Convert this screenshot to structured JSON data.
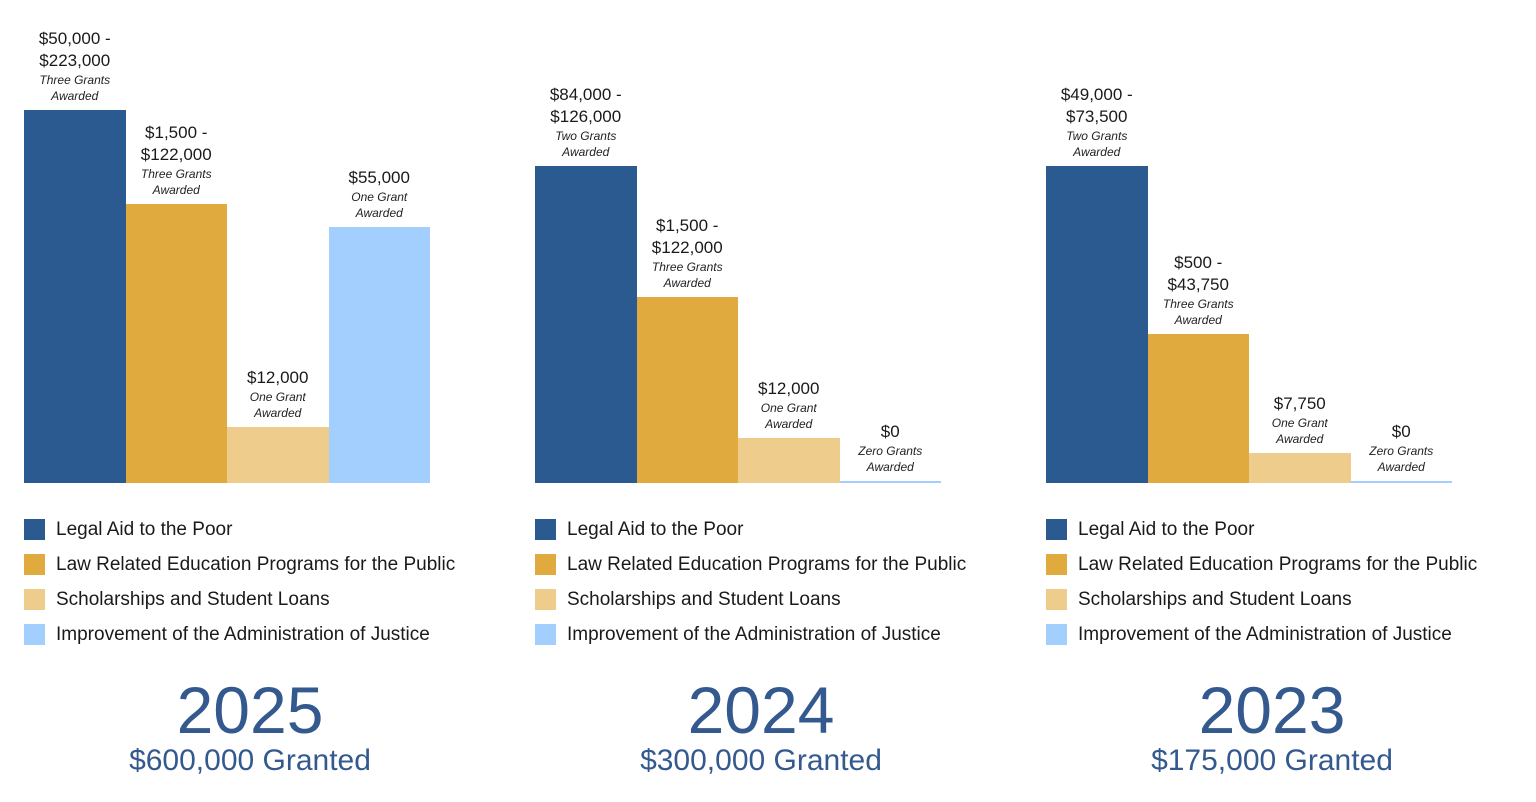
{
  "chart_data": [
    {
      "type": "bar",
      "title": "2025",
      "subtitle": "$600,000 Granted",
      "categories": [
        "Legal Aid to the Poor",
        "Law Related Education Programs for the Public",
        "Scholarships and Student Loans",
        "Improvement of the Administration of Justice"
      ],
      "bars": [
        {
          "amount": "$50,000 - $223,000",
          "note": "Three Grants Awarded"
        },
        {
          "amount": "$1,500 - $122,000",
          "note": "Three Grants Awarded"
        },
        {
          "amount": "$12,000",
          "note": "One Grant Awarded"
        },
        {
          "amount": "$55,000",
          "note": "One Grant Awarded"
        }
      ],
      "legend_placement": "bottom",
      "grid": false
    },
    {
      "type": "bar",
      "title": "2024",
      "subtitle": "$300,000 Granted",
      "categories": [
        "Legal Aid to the Poor",
        "Law Related Education Programs for the Public",
        "Scholarships and Student Loans",
        "Improvement of the Administration of Justice"
      ],
      "bars": [
        {
          "amount": "$84,000 - $126,000",
          "note": "Two Grants Awarded"
        },
        {
          "amount": "$1,500 - $122,000",
          "note": "Three Grants Awarded"
        },
        {
          "amount": "$12,000",
          "note": "One Grant Awarded"
        },
        {
          "amount": "$0",
          "note": "Zero Grants Awarded"
        }
      ],
      "legend_placement": "bottom",
      "grid": false
    },
    {
      "type": "bar",
      "title": "2023",
      "subtitle": "$175,000 Granted",
      "categories": [
        "Legal Aid to the Poor",
        "Law Related Education Programs for the Public",
        "Scholarships and Student Loans",
        "Improvement of the Administration of Justice"
      ],
      "bars": [
        {
          "amount": "$49,000 - $73,500",
          "note": "Two Grants Awarded"
        },
        {
          "amount": "$500 - $43,750",
          "note": "Three Grants Awarded"
        },
        {
          "amount": "$7,750",
          "note": "One Grant Awarded"
        },
        {
          "amount": "$0",
          "note": "Zero Grants Awarded"
        }
      ],
      "legend_placement": "bottom",
      "grid": false
    }
  ],
  "colors": [
    "#2a5a8f",
    "#e1aa3f",
    "#edcc8c",
    "#a3cfff"
  ],
  "title_color": "#34598f"
}
